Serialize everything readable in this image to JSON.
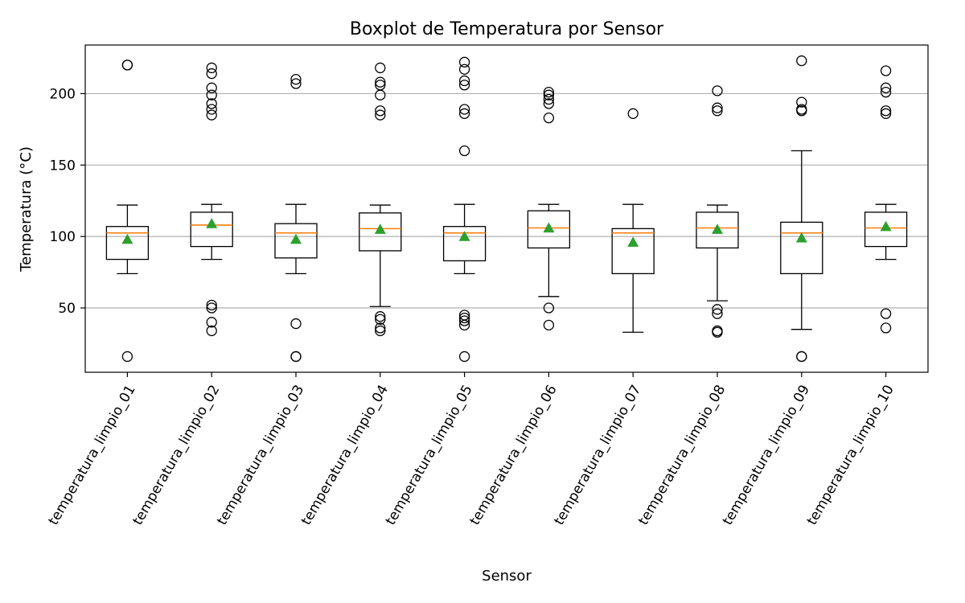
{
  "chart_data": {
    "type": "boxplot",
    "title": "Boxplot de Temperatura por Sensor",
    "xlabel": "Sensor",
    "ylabel": "Temperatura (°C)",
    "ylim": [
      5,
      234
    ],
    "yticks": [
      50,
      100,
      150,
      200
    ],
    "grid": "y",
    "colors": {
      "box": "#000000",
      "median": "#ff7f0e",
      "mean": "#2ca02c",
      "grid": "#b0b0b0",
      "flier": "#000000"
    },
    "categories": [
      "temperatura_limpio_01",
      "temperatura_limpio_02",
      "temperatura_limpio_03",
      "temperatura_limpio_04",
      "temperatura_limpio_05",
      "temperatura_limpio_06",
      "temperatura_limpio_07",
      "temperatura_limpio_08",
      "temperatura_limpio_09",
      "temperatura_limpio_10"
    ],
    "boxes": [
      {
        "whisker_low": 74,
        "q1": 84,
        "median": 102.5,
        "q3": 107,
        "whisker_high": 122,
        "mean": 98,
        "fliers": [
          220,
          220,
          16
        ]
      },
      {
        "whisker_low": 84,
        "q1": 93,
        "median": 108,
        "q3": 117,
        "whisker_high": 122.5,
        "mean": 109,
        "fliers": [
          218,
          214,
          204,
          199,
          193,
          189,
          185,
          52,
          50,
          40,
          34
        ]
      },
      {
        "whisker_low": 74,
        "q1": 85,
        "median": 102.5,
        "q3": 109,
        "whisker_high": 122.5,
        "mean": 98,
        "fliers": [
          210,
          207,
          39,
          16,
          16
        ]
      },
      {
        "whisker_low": 51,
        "q1": 90,
        "median": 105.5,
        "q3": 116.5,
        "whisker_high": 122,
        "mean": 105,
        "fliers": [
          218,
          208,
          206,
          199,
          188,
          185,
          44,
          42,
          36,
          34
        ]
      },
      {
        "whisker_low": 74,
        "q1": 83,
        "median": 102.5,
        "q3": 107,
        "whisker_high": 122.5,
        "mean": 100,
        "fliers": [
          222,
          217,
          209,
          206,
          189,
          186,
          160,
          45,
          43,
          41,
          38,
          16
        ]
      },
      {
        "whisker_low": 58,
        "q1": 92,
        "median": 106,
        "q3": 118,
        "whisker_high": 122.5,
        "mean": 106,
        "fliers": [
          201,
          199,
          196,
          193,
          183,
          50,
          38
        ]
      },
      {
        "whisker_low": 33,
        "q1": 74,
        "median": 102.5,
        "q3": 105.5,
        "whisker_high": 122.5,
        "mean": 96,
        "fliers": [
          186
        ]
      },
      {
        "whisker_low": 55,
        "q1": 92,
        "median": 106,
        "q3": 117,
        "whisker_high": 122,
        "mean": 105,
        "fliers": [
          202,
          190,
          188,
          49,
          46,
          34,
          33
        ]
      },
      {
        "whisker_low": 35,
        "q1": 74,
        "median": 102.5,
        "q3": 110,
        "whisker_high": 160,
        "mean": 99,
        "fliers": [
          223,
          194,
          189,
          188,
          16,
          16
        ]
      },
      {
        "whisker_low": 84,
        "q1": 93,
        "median": 106,
        "q3": 117,
        "whisker_high": 122.5,
        "mean": 107,
        "fliers": [
          216,
          204,
          201,
          188,
          186,
          46,
          36
        ]
      }
    ]
  }
}
